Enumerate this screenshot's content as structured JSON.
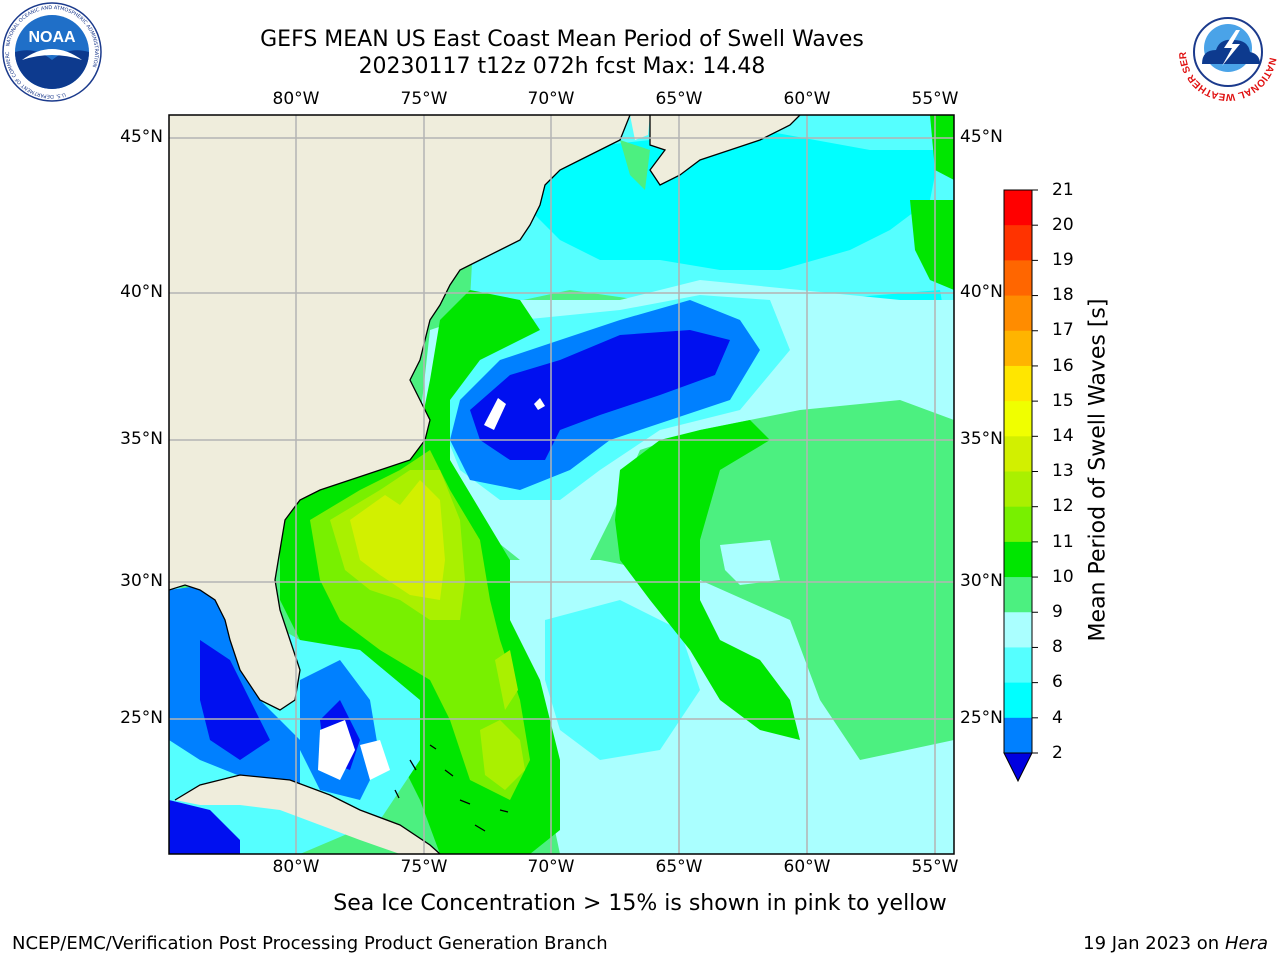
{
  "header": {
    "title_line1": "GEFS MEAN US East Coast Mean Period of Swell Waves",
    "title_line2": "20230117 t12z 072h fcst   Max: 14.48"
  },
  "axes": {
    "lon_labels": [
      "80°W",
      "75°W",
      "70°W",
      "65°W",
      "60°W",
      "55°W"
    ],
    "lat_labels": [
      "45°N",
      "40°N",
      "35°N",
      "30°N",
      "25°N"
    ]
  },
  "colorbar": {
    "label": "Mean Period of Swell Waves [s]",
    "ticks": [
      "21",
      "20",
      "19",
      "18",
      "17",
      "16",
      "15",
      "14",
      "13",
      "12",
      "11",
      "10",
      "9",
      "8",
      "6",
      "4",
      "2"
    ],
    "colors": [
      "#ff0000",
      "#ff3300",
      "#ff6600",
      "#ff8c00",
      "#ffb400",
      "#ffe600",
      "#f0ff00",
      "#d2f000",
      "#aaf000",
      "#78f000",
      "#00e600",
      "#4cf080",
      "#aaffff",
      "#55ffff",
      "#00ffff",
      "#0080ff",
      "#0010f0"
    ],
    "under_color": "#0000e0"
  },
  "map_colors": {
    "land": "#efeddc",
    "grid": "#b4b4b4",
    "c2": "#0010f0",
    "c4": "#0080ff",
    "c6": "#00ffff",
    "c8": "#55ffff",
    "c9": "#aaffff",
    "c10": "#4cf080",
    "c11": "#00e600",
    "c12": "#78f000",
    "c13": "#aaf000",
    "c14": "#d2f000",
    "c15": "#f0ff00"
  },
  "logos": {
    "noaa_text": "NOAA",
    "noaa_ring": "NATIONAL OCEANIC AND ATMOSPHERIC ADMINISTRATION",
    "noaa_ring_bottom": "U.S. DEPARTMENT OF COMMERCE",
    "nws_ring": "NATIONAL WEATHER SERVICE"
  },
  "footer": {
    "note": "Sea Ice Concentration > 15% is shown in pink to yellow",
    "credit": "NCEP/EMC/Verification Post Processing Product Generation Branch",
    "date_prefix": "19 Jan 2023 on ",
    "date_host": "Hera"
  }
}
